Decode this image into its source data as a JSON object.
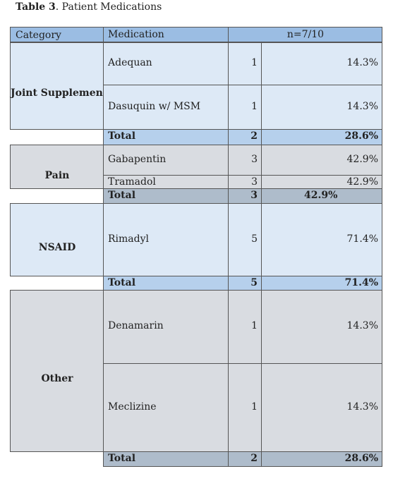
{
  "caption": {
    "label": "Table 3",
    "title": ". Patient Medications"
  },
  "header": {
    "category": "Category",
    "medication": "Medication",
    "n": "n=7/10"
  },
  "groups": [
    {
      "category": "Joint Supplement",
      "rows": [
        {
          "med": "Adequan",
          "count": "1",
          "pct": "14.3%"
        },
        {
          "med": "Dasuquin w/ MSM",
          "count": "1",
          "pct": "14.3%"
        }
      ],
      "total": {
        "label": "Total",
        "count": "2",
        "pct": "28.6%"
      }
    },
    {
      "category": "Pain",
      "rows": [
        {
          "med": "Gabapentin",
          "count": "3",
          "pct": "42.9%"
        },
        {
          "med": "Tramadol",
          "count": "3",
          "pct": "42.9%"
        }
      ],
      "total": {
        "label": "Total",
        "count": "3",
        "pct": "42.9%"
      }
    },
    {
      "category": "NSAID",
      "rows": [
        {
          "med": "Rimadyl",
          "count": "5",
          "pct": "71.4%"
        }
      ],
      "total": {
        "label": "Total",
        "count": "5",
        "pct": "71.4%"
      }
    },
    {
      "category": "Other",
      "rows": [
        {
          "med": "Denamarin",
          "count": "1",
          "pct": "14.3%"
        },
        {
          "med": "Meclizine",
          "count": "1",
          "pct": "14.3%"
        }
      ],
      "total": {
        "label": "Total",
        "count": "2",
        "pct": "28.6%"
      }
    }
  ]
}
